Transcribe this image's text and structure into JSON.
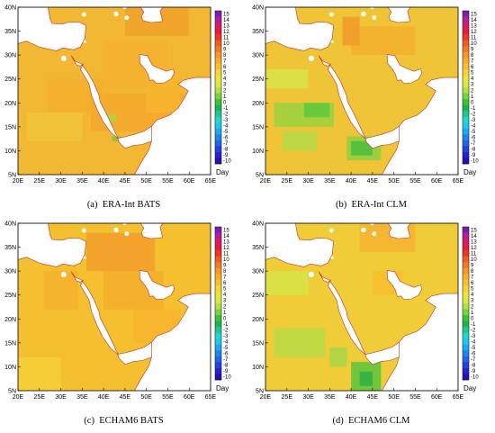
{
  "panels": [
    {
      "label": "(a)",
      "title": "ERA-Int BATS",
      "base": "#f2b833",
      "field": "batsA"
    },
    {
      "label": "(b)",
      "title": "ERA-Int CLM",
      "base": "#efc436",
      "field": "clmB"
    },
    {
      "label": "(c)",
      "title": "ECHAM6 BATS",
      "base": "#f4c030",
      "field": "batsC"
    },
    {
      "label": "(d)",
      "title": "ECHAM6 CLM",
      "base": "#efcc38",
      "field": "clmD"
    }
  ],
  "axes": {
    "lon_ticks": [
      "20E",
      "25E",
      "30E",
      "35E",
      "40E",
      "45E",
      "50E",
      "55E",
      "60E",
      "65E"
    ],
    "lat_ticks": [
      "5N",
      "10N",
      "15N",
      "20N",
      "25N",
      "30N",
      "35N",
      "40N"
    ],
    "lon_range": [
      20,
      65
    ],
    "lat_range": [
      5,
      40
    ]
  },
  "colorbar": {
    "unit": "Day",
    "labels": [
      "15",
      "14",
      "13",
      "12",
      "11",
      "10",
      "9",
      "8",
      "7",
      "6",
      "5",
      "4",
      "3",
      "2",
      "1",
      "0",
      "-1",
      "-2",
      "-3",
      "-4",
      "-5",
      "-6",
      "-7",
      "-8",
      "-9",
      "-10"
    ],
    "colors": [
      "#7a1fb0",
      "#b0209a",
      "#d8186a",
      "#e81c3c",
      "#ee3628",
      "#f25a24",
      "#f47a22",
      "#f69826",
      "#f7ad2a",
      "#f8c02c",
      "#f6d436",
      "#eee23c",
      "#d6e844",
      "#b2e040",
      "#7cd23c",
      "#3cc23c",
      "#1cb44c",
      "#1ec890",
      "#22d6c8",
      "#1ec8ec",
      "#1ca8ee",
      "#1c88ec",
      "#2064e8",
      "#2044dc",
      "#2424cc",
      "#2810b4"
    ]
  }
}
